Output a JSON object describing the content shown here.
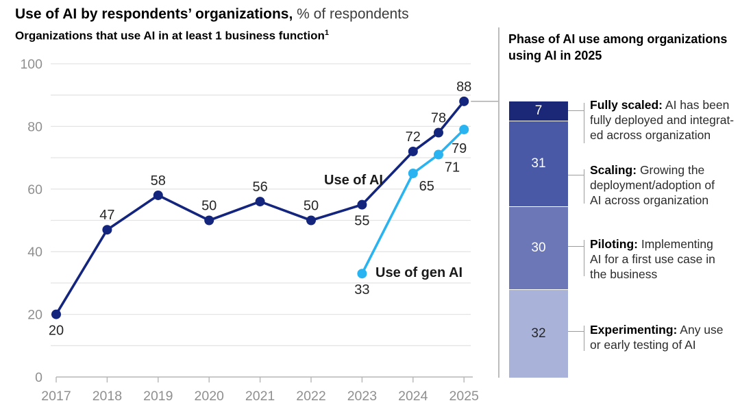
{
  "title": {
    "text": "Use of AI by respondents’ organizations,",
    "suffix": " % of respondents"
  },
  "subtitle": {
    "text": "Organizations that use AI in at least 1 business function",
    "footnote": "1"
  },
  "chart_data": {
    "type": "line",
    "title": "Organizations that use AI in at least 1 business function",
    "unit": "% of respondents",
    "xlabel": "",
    "ylabel": "",
    "x_tick_labels": [
      "2017",
      "2018",
      "2019",
      "2020",
      "2021",
      "2022",
      "2023",
      "2024",
      "2025"
    ],
    "y_ticks": [
      0,
      20,
      40,
      60,
      80,
      100
    ],
    "ylim": [
      0,
      100
    ],
    "gridline_step": 10,
    "grid": true,
    "legend_position": "inline-annotations",
    "series": [
      {
        "name": "Use of AI",
        "color": "#14257e",
        "points": [
          {
            "year": 2017,
            "value": 20,
            "label_pos": "below"
          },
          {
            "year": 2018,
            "value": 47,
            "label_pos": "above"
          },
          {
            "year": 2019,
            "value": 58,
            "label_pos": "above"
          },
          {
            "year": 2020,
            "value": 50,
            "label_pos": "above"
          },
          {
            "year": 2021,
            "value": 56,
            "label_pos": "above"
          },
          {
            "year": 2022,
            "value": 50,
            "label_pos": "above"
          },
          {
            "year": 2023,
            "value": 55,
            "label_pos": "below"
          },
          {
            "year": 2024,
            "value": 72,
            "label_pos": "above"
          },
          {
            "year": 2024.5,
            "value": 78,
            "label_pos": "above"
          },
          {
            "year": 2025,
            "value": 88,
            "label_pos": "above"
          }
        ]
      },
      {
        "name": "Use of gen AI",
        "color": "#29b3f0",
        "points": [
          {
            "year": 2023,
            "value": 33,
            "label_pos": "below"
          },
          {
            "year": 2024,
            "value": 65,
            "label_pos": "below-right"
          },
          {
            "year": 2024.5,
            "value": 71,
            "label_pos": "below-right"
          },
          {
            "year": 2025,
            "value": 79,
            "label_pos": "below-left"
          }
        ]
      }
    ]
  },
  "right_panel": {
    "header": "Phase of AI use among organizations\nusing AI in 2025",
    "bar_total": 100,
    "phases": [
      {
        "value": 7,
        "term": "Fully scaled:",
        "desc": "AI has been\nfully deployed and integrat-\ned across organization",
        "color": "#1b2878",
        "value_color": "#ffffff"
      },
      {
        "value": 31,
        "term": "Scaling:",
        "desc": "Growing the\ndeployment/adoption of\nAI across organization",
        "color": "#4a59a5",
        "value_color": "#ffffff"
      },
      {
        "value": 30,
        "term": "Piloting:",
        "desc": "Implementing\nAI for a first use case in\nthe business",
        "color": "#6b77b7",
        "value_color": "#ffffff"
      },
      {
        "value": 32,
        "term": "Experimenting:",
        "desc": "Any use\nor early testing of AI",
        "color": "#a9b2d8",
        "value_color": "#262626"
      }
    ]
  },
  "colors": {
    "grid": "#e4e4e4",
    "axis": "#b5b5b5",
    "axis_text": "#8f8f8f",
    "data_label": "#262626",
    "series_label": "#1a1a1a",
    "connector": "#9b9b9b"
  }
}
